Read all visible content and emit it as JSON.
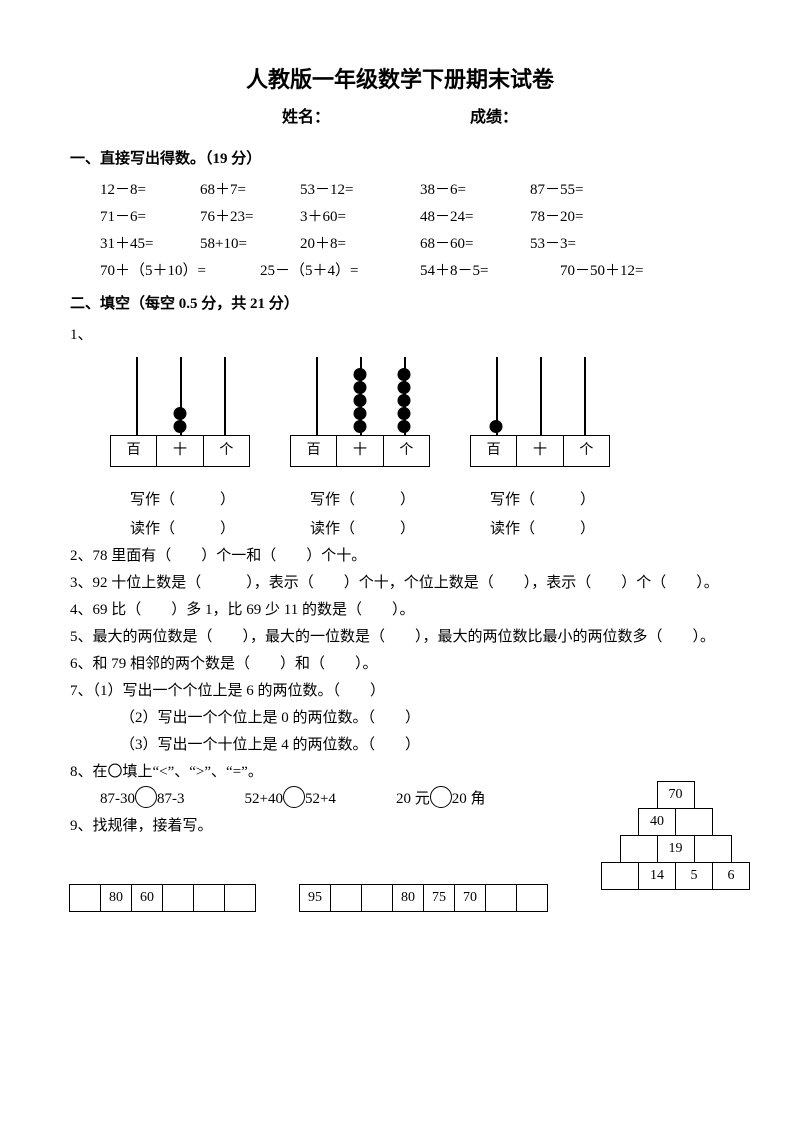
{
  "title": "人教版一年级数学下册期末试卷",
  "name_label": "姓名：",
  "score_label": "成绩：",
  "sec1": "一、直接写出得数。（19 分）",
  "eq": {
    "r1": [
      "12－8=",
      "68＋7=",
      "53－12=",
      "38－6=",
      "87－55="
    ],
    "r2": [
      "71－6=",
      "76＋23=",
      "3＋60=",
      "48－24=",
      "78－20="
    ],
    "r3": [
      "31＋45=",
      "58+10=",
      "20＋8=",
      "68－60=",
      "53－3="
    ],
    "r4": [
      "70＋（5＋10）=",
      "25－（5＋4）=",
      "54＋8－5=",
      "70－50＋12="
    ]
  },
  "sec2": "二、填空（每空 0.5 分，共 21 分）",
  "q1_label": "1、",
  "abacus": [
    {
      "beads": {
        "r1": 0,
        "r2": 2,
        "r3": 0
      },
      "labels": [
        "百",
        "十",
        "个"
      ]
    },
    {
      "beads": {
        "r1": 0,
        "r2": 5,
        "r3": 5
      },
      "labels": [
        "百",
        "十",
        "个"
      ]
    },
    {
      "beads": {
        "r1": 1,
        "r2": 0,
        "r3": 0
      },
      "labels": [
        "百",
        "十",
        "个"
      ]
    }
  ],
  "write_label": "写作（　　　）",
  "read_label": "读作（　　　）",
  "q2": "2、78 里面有（　　）个一和（　　）个十。",
  "q3": "3、92 十位上数是（　　　），表示（　　）个十，个位上数是（　　），表示（　　）个（　　）。",
  "q4": "4、69 比（　　）多 1，比 69 少 11 的数是（　　）。",
  "q5": "5、最大的两位数是（　　），最大的一位数是（　　），最大的两位数比最小的两位数多（　　）。",
  "q6": "6、和 79 相邻的两个数是（　　）和（　　）。",
  "q7": "7、（1）写出一个个位上是 6 的两位数。（　　）",
  "q7b": "（2）写出一个个位上是 0 的两位数。（　　）",
  "q7c": "（3）写出一个十位上是 4 的两位数。（　　）",
  "q8": "8、在〇填上“<”、“>”、“=”。",
  "q8a_l": "87-30",
  "q8a_r": "87-3",
  "q8b_l": "52+40",
  "q8b_r": "52+4",
  "q8c_l": "20 元",
  "q8c_r": "20 角",
  "q9": "9、找规律，接着写。",
  "seq1": [
    "",
    "80",
    "60",
    "",
    "",
    ""
  ],
  "seq2": [
    "95",
    "",
    "",
    "80",
    "75",
    "70",
    "",
    ""
  ],
  "pyr": [
    [
      "70"
    ],
    [
      "40",
      ""
    ],
    [
      "",
      "19",
      ""
    ],
    [
      "",
      "14",
      "5",
      "6"
    ]
  ]
}
